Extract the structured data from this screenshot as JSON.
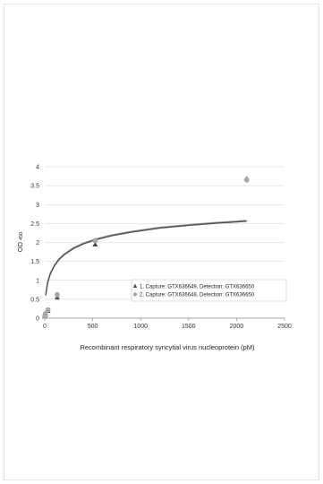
{
  "chart_data": {
    "type": "scatter",
    "title": "",
    "xlabel": "Recombinant respiratory syncytial virus nucleoprotein (pM)",
    "ylabel": "OD",
    "ylabel_subscript": "450",
    "xlim": [
      0,
      2500
    ],
    "ylim": [
      0,
      4
    ],
    "x_ticks": [
      0,
      500,
      1000,
      1500,
      2000,
      2500
    ],
    "y_ticks": [
      0,
      0.5,
      1,
      1.5,
      2,
      2.5,
      3,
      3.5,
      4
    ],
    "grid": "horizontal",
    "legend_position": "lower-right",
    "series": [
      {
        "name": "1. Capture: GTX636649, Detection: GTX636650",
        "marker": "triangle",
        "color": "#4a4a4a",
        "x": [
          0,
          8,
          33,
          130,
          526,
          2105
        ],
        "y": [
          0.05,
          0.1,
          0.2,
          0.55,
          1.95,
          3.68
        ]
      },
      {
        "name": "2. Capture: GTX636648, Detection: GTX636650",
        "marker": "circle",
        "color": "#a8a8a8",
        "x": [
          0,
          8,
          33,
          130,
          526,
          2105
        ],
        "y": [
          0.06,
          0.12,
          0.22,
          0.62,
          2.05,
          3.65
        ]
      }
    ],
    "fit_curves": [
      {
        "color": "#9a9a9a",
        "x": [
          10,
          30,
          60,
          100,
          150,
          200,
          300,
          400,
          526,
          700,
          900,
          1200,
          1500,
          1800,
          2105
        ],
        "y": [
          0.62,
          0.96,
          1.2,
          1.4,
          1.57,
          1.69,
          1.86,
          1.98,
          2.09,
          2.2,
          2.29,
          2.4,
          2.47,
          2.53,
          2.58
        ]
      },
      {
        "color": "#505050",
        "x": [
          10,
          30,
          60,
          100,
          150,
          200,
          300,
          400,
          526,
          700,
          900,
          1200,
          1500,
          1800,
          2105
        ],
        "y": [
          0.6,
          0.94,
          1.18,
          1.38,
          1.55,
          1.67,
          1.84,
          1.96,
          2.07,
          2.18,
          2.27,
          2.38,
          2.45,
          2.51,
          2.56
        ]
      }
    ]
  }
}
